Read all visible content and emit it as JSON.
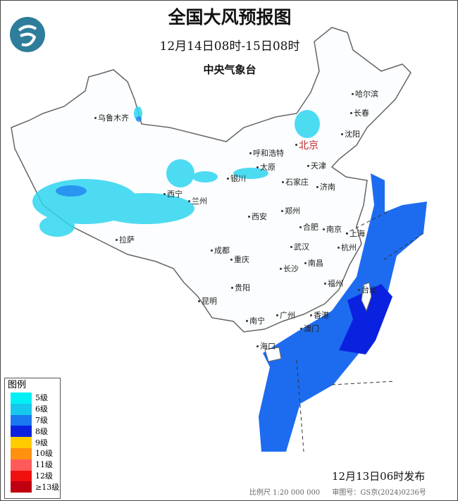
{
  "header": {
    "title": "全国大风预报图",
    "period": "12月14日08时-15日08时",
    "agency": "中央气象台"
  },
  "cities": [
    {
      "name": "乌鲁木齐",
      "capital": false
    },
    {
      "name": "哈尔滨",
      "capital": false
    },
    {
      "name": "长春",
      "capital": false
    },
    {
      "name": "沈阳",
      "capital": false
    },
    {
      "name": "北京",
      "capital": true
    },
    {
      "name": "呼和浩特",
      "capital": false
    },
    {
      "name": "天津",
      "capital": false
    },
    {
      "name": "太原",
      "capital": false
    },
    {
      "name": "石家庄",
      "capital": false
    },
    {
      "name": "银川",
      "capital": false
    },
    {
      "name": "济南",
      "capital": false
    },
    {
      "name": "西宁",
      "capital": false
    },
    {
      "name": "兰州",
      "capital": false
    },
    {
      "name": "郑州",
      "capital": false
    },
    {
      "name": "西安",
      "capital": false
    },
    {
      "name": "合肥",
      "capital": false
    },
    {
      "name": "南京",
      "capital": false
    },
    {
      "name": "上海",
      "capital": false
    },
    {
      "name": "拉萨",
      "capital": false
    },
    {
      "name": "成都",
      "capital": false
    },
    {
      "name": "武汉",
      "capital": false
    },
    {
      "name": "杭州",
      "capital": false
    },
    {
      "name": "重庆",
      "capital": false
    },
    {
      "name": "南昌",
      "capital": false
    },
    {
      "name": "长沙",
      "capital": false
    },
    {
      "name": "福州",
      "capital": false
    },
    {
      "name": "台北",
      "capital": false
    },
    {
      "name": "贵阳",
      "capital": false
    },
    {
      "name": "昆明",
      "capital": false
    },
    {
      "name": "广州",
      "capital": false
    },
    {
      "name": "香港",
      "capital": false
    },
    {
      "name": "南宁",
      "capital": false
    },
    {
      "name": "澳门",
      "capital": false
    },
    {
      "name": "海口",
      "capital": false
    }
  ],
  "legend": {
    "title": "图例",
    "items": [
      {
        "label": "5级",
        "color": "#00f0f5"
      },
      {
        "label": "6级",
        "color": "#16c8ec"
      },
      {
        "label": "7级",
        "color": "#1a78f0"
      },
      {
        "label": "8级",
        "color": "#0a22e0"
      },
      {
        "label": "9级",
        "color": "#ffcc00"
      },
      {
        "label": "10级",
        "color": "#ff9010"
      },
      {
        "label": "11级",
        "color": "#ff5a5a"
      },
      {
        "label": "12级",
        "color": "#f01010"
      },
      {
        "label": "≥13级",
        "color": "#c00010"
      }
    ]
  },
  "footer": {
    "issued": "12月13日06时发布",
    "scale": "比例尺 1:20 000 000",
    "review_no": "审图号：GS京(2024)0236号"
  }
}
